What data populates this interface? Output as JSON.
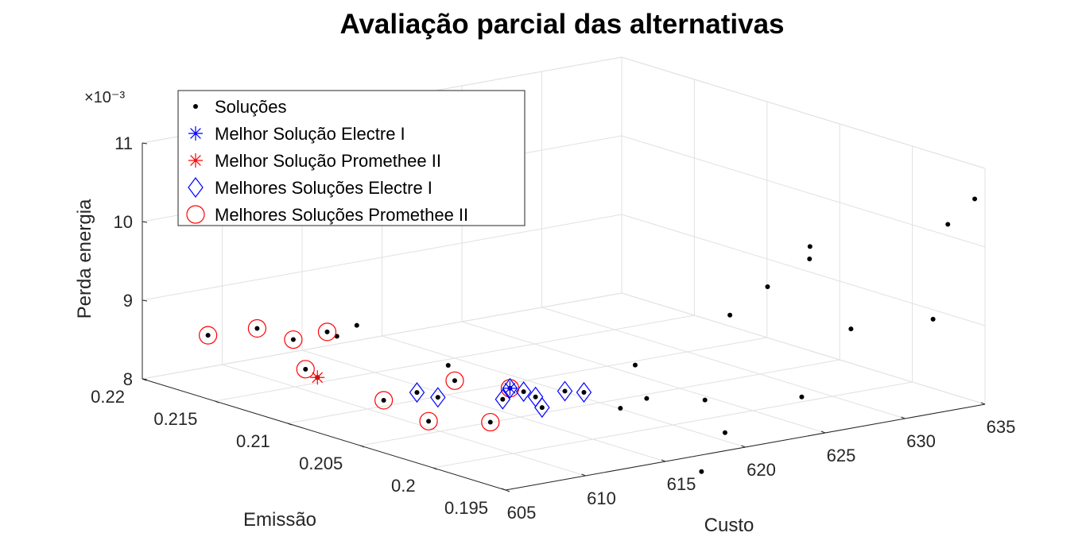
{
  "chart_data": {
    "type": "scatter3d",
    "title": "Avaliação parcial das alternativas",
    "xlabel": "Custo",
    "ylabel": "Emissão",
    "zlabel": "Perda energia",
    "z_exponent": "×10⁻³",
    "xlim": [
      605,
      635
    ],
    "ylim": [
      0.195,
      0.22
    ],
    "zlim": [
      8,
      11
    ],
    "x_ticks": [
      "605",
      "610",
      "615",
      "620",
      "625",
      "630",
      "635"
    ],
    "y_ticks": [
      "0.195",
      "0.2",
      "0.205",
      "0.21",
      "0.215",
      "0.22"
    ],
    "z_ticks": [
      "8",
      "9",
      "10",
      "11"
    ],
    "grid": true,
    "legend_position": "top-left",
    "legend": [
      {
        "label": "Soluções",
        "marker": "dot",
        "color": "#000000"
      },
      {
        "label": "Melhor Solução Electre I",
        "marker": "asterisk",
        "color": "#0000ff"
      },
      {
        "label": "Melhor Solução Promethee II",
        "marker": "asterisk",
        "color": "#ff0000"
      },
      {
        "label": "Melhores Soluções Electre I",
        "marker": "diamond",
        "color": "#0000ff"
      },
      {
        "label": "Melhores Soluções Promethee II",
        "marker": "circle",
        "color": "#ff0000"
      }
    ],
    "series": [
      {
        "name": "Soluções",
        "points": [
          [
            605.2,
            0.2157,
            8.79
          ],
          [
            606.0,
            0.2132,
            8.99
          ],
          [
            606.9,
            0.2117,
            8.9
          ],
          [
            607.2,
            0.2097,
            9.1
          ],
          [
            606.3,
            0.2102,
            8.63
          ],
          [
            605.5,
            0.2085,
            8.65
          ],
          [
            605.9,
            0.2076,
            9.21
          ],
          [
            608.6,
            0.2092,
            9.16
          ],
          [
            607.1,
            0.2057,
            8.46
          ],
          [
            608.0,
            0.2036,
            8.28
          ],
          [
            608.0,
            0.2044,
            8.6
          ],
          [
            608.4,
            0.2034,
            8.58
          ],
          [
            609.5,
            0.201,
            8.36
          ],
          [
            610.0,
            0.204,
            8.7
          ],
          [
            610.5,
            0.205,
            8.82
          ],
          [
            610.0,
            0.2007,
            8.65
          ],
          [
            611.0,
            0.2013,
            8.72
          ],
          [
            611.4,
            0.2008,
            8.69
          ],
          [
            611.6,
            0.2002,
            8.65
          ],
          [
            611.1,
            0.1992,
            8.59
          ],
          [
            612.8,
            0.1995,
            8.72
          ],
          [
            613.9,
            0.1994,
            8.67
          ],
          [
            614.0,
            0.197,
            8.6
          ],
          [
            616.1,
            0.1975,
            8.62
          ],
          [
            616.2,
            0.1984,
            8.99
          ],
          [
            618.2,
            0.1958,
            8.62
          ],
          [
            616.0,
            0.192,
            8.5
          ],
          [
            613.8,
            0.1912,
            8.13
          ],
          [
            620.8,
            0.192,
            8.78
          ],
          [
            620.4,
            0.1965,
            9.58
          ],
          [
            623.7,
            0.1918,
            9.55
          ],
          [
            622.3,
            0.196,
            9.9
          ],
          [
            624.2,
            0.1952,
            10.23
          ],
          [
            624.5,
            0.1955,
            10.36
          ],
          [
            628.2,
            0.1911,
            9.55
          ],
          [
            632.4,
            0.1947,
            10.4
          ],
          [
            633.9,
            0.1945,
            10.68
          ]
        ]
      },
      {
        "name": "Melhores Soluções Promethee II",
        "points": [
          [
            605.2,
            0.2157,
            8.79
          ],
          [
            606.0,
            0.2132,
            8.99
          ],
          [
            606.9,
            0.2117,
            8.9
          ],
          [
            607.2,
            0.2097,
            9.1
          ],
          [
            606.3,
            0.2102,
            8.63
          ],
          [
            607.1,
            0.2057,
            8.46
          ],
          [
            608.0,
            0.2036,
            8.28
          ],
          [
            609.5,
            0.201,
            8.36
          ],
          [
            610.0,
            0.204,
            8.7
          ],
          [
            611.0,
            0.2013,
            8.72
          ]
        ]
      },
      {
        "name": "Melhores Soluções Electre I",
        "points": [
          [
            608.0,
            0.2044,
            8.6
          ],
          [
            608.4,
            0.2034,
            8.58
          ],
          [
            611.0,
            0.2013,
            8.72
          ],
          [
            611.4,
            0.2008,
            8.69
          ],
          [
            611.6,
            0.2002,
            8.65
          ],
          [
            613.9,
            0.1994,
            8.67
          ],
          [
            612.8,
            0.1995,
            8.72
          ],
          [
            611.1,
            0.1992,
            8.59
          ],
          [
            610.0,
            0.2007,
            8.65
          ]
        ]
      },
      {
        "name": "Melhor Solução Electre I",
        "points": [
          [
            611.0,
            0.2013,
            8.72
          ]
        ]
      },
      {
        "name": "Melhor Solução Promethee II",
        "points": [
          [
            605.5,
            0.2085,
            8.65
          ]
        ]
      }
    ]
  }
}
